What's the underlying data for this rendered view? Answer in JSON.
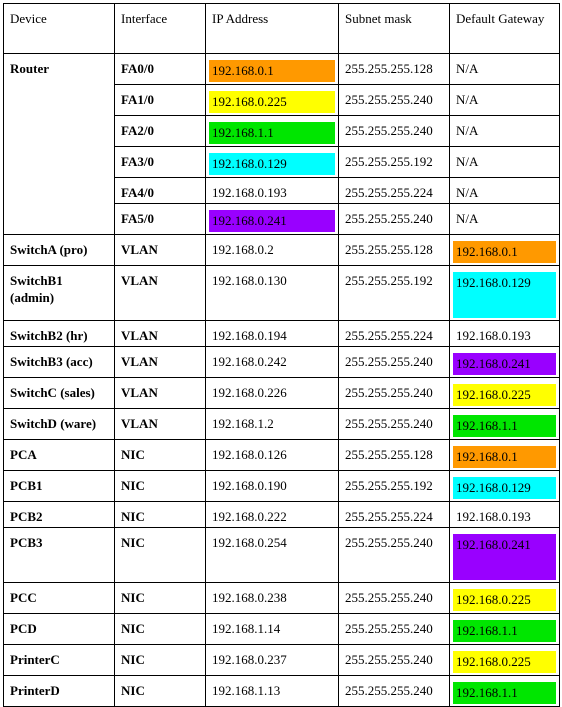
{
  "headers": [
    "Device",
    "Interface",
    "IP Address",
    "Subnet mask",
    "Default Gateway"
  ],
  "colors": {
    "orange": "#ff9900",
    "yellow": "#ffff00",
    "green": "#00e600",
    "cyan": "#00ffff",
    "purple": "#9900ff"
  },
  "rows": [
    {
      "device": "Router",
      "interface": "FA0/0",
      "ip": "192.168.0.1",
      "mask": "255.255.255.128",
      "gateway": "N/A",
      "ip_color": "orange",
      "gw_color": ""
    },
    {
      "device": "",
      "interface": "FA1/0",
      "ip": "192.168.0.225",
      "mask": "255.255.255.240",
      "gateway": "N/A",
      "ip_color": "yellow",
      "gw_color": ""
    },
    {
      "device": "",
      "interface": "FA2/0",
      "ip": "192.168.1.1",
      "mask": "255.255.255.240",
      "gateway": "N/A",
      "ip_color": "green",
      "gw_color": ""
    },
    {
      "device": "",
      "interface": "FA3/0",
      "ip": "192.168.0.129",
      "mask": "255.255.255.192",
      "gateway": "N/A",
      "ip_color": "cyan",
      "gw_color": ""
    },
    {
      "device": "",
      "interface": "FA4/0",
      "ip": "192.168.0.193",
      "mask": "255.255.255.224",
      "gateway": "N/A",
      "ip_color": "",
      "gw_color": ""
    },
    {
      "device": "",
      "interface": "FA5/0",
      "ip": "192.168.0.241",
      "mask": "255.255.255.240",
      "gateway": "N/A",
      "ip_color": "purple",
      "gw_color": ""
    },
    {
      "device": "SwitchA (pro)",
      "interface": "VLAN",
      "ip": "192.168.0.2",
      "mask": "255.255.255.128",
      "gateway": "192.168.0.1",
      "ip_color": "",
      "gw_color": "orange"
    },
    {
      "device": "SwitchB1 (admin)",
      "interface": "VLAN",
      "ip": "192.168.0.130",
      "mask": "255.255.255.192",
      "gateway": "192.168.0.129",
      "ip_color": "",
      "gw_color": "cyan"
    },
    {
      "device": "SwitchB2 (hr)",
      "interface": "VLAN",
      "ip": "192.168.0.194",
      "mask": "255.255.255.224",
      "gateway": "192.168.0.193",
      "ip_color": "",
      "gw_color": ""
    },
    {
      "device": "SwitchB3 (acc)",
      "interface": "VLAN",
      "ip": "192.168.0.242",
      "mask": "255.255.255.240",
      "gateway": "192.168.0.241",
      "ip_color": "",
      "gw_color": "purple"
    },
    {
      "device": "SwitchC (sales)",
      "interface": "VLAN",
      "ip": "192.168.0.226",
      "mask": "255.255.255.240",
      "gateway": "192.168.0.225",
      "ip_color": "",
      "gw_color": "yellow"
    },
    {
      "device": "SwitchD (ware)",
      "interface": "VLAN",
      "ip": "192.168.1.2",
      "mask": "255.255.255.240",
      "gateway": "192.168.1.1",
      "ip_color": "",
      "gw_color": "green"
    },
    {
      "device": "PCA",
      "interface": "NIC",
      "ip": "192.168.0.126",
      "mask": "255.255.255.128",
      "gateway": "192.168.0.1",
      "ip_color": "",
      "gw_color": "orange"
    },
    {
      "device": "PCB1",
      "interface": "NIC",
      "ip": "192.168.0.190",
      "mask": "255.255.255.192",
      "gateway": "192.168.0.129",
      "ip_color": "",
      "gw_color": "cyan"
    },
    {
      "device": "PCB2",
      "interface": "NIC",
      "ip": "192.168.0.222",
      "mask": "255.255.255.224",
      "gateway": "192.168.0.193",
      "ip_color": "",
      "gw_color": ""
    },
    {
      "device": "PCB3",
      "interface": "NIC",
      "ip": "192.168.0.254",
      "mask": "255.255.255.240",
      "gateway": "192.168.0.241",
      "ip_color": "",
      "gw_color": "purple"
    },
    {
      "device": "PCC",
      "interface": "NIC",
      "ip": "192.168.0.238",
      "mask": "255.255.255.240",
      "gateway": "192.168.0.225",
      "ip_color": "",
      "gw_color": "yellow"
    },
    {
      "device": "PCD",
      "interface": "NIC",
      "ip": "192.168.1.14",
      "mask": "255.255.255.240",
      "gateway": "192.168.1.1",
      "ip_color": "",
      "gw_color": "green"
    },
    {
      "device": "PrinterC",
      "interface": "NIC",
      "ip": "192.168.0.237",
      "mask": "255.255.255.240",
      "gateway": "192.168.0.225",
      "ip_color": "",
      "gw_color": "yellow"
    },
    {
      "device": "PrinterD",
      "interface": "NIC",
      "ip": "192.168.1.13",
      "mask": "255.255.255.240",
      "gateway": "192.168.1.1",
      "ip_color": "",
      "gw_color": "green"
    }
  ]
}
